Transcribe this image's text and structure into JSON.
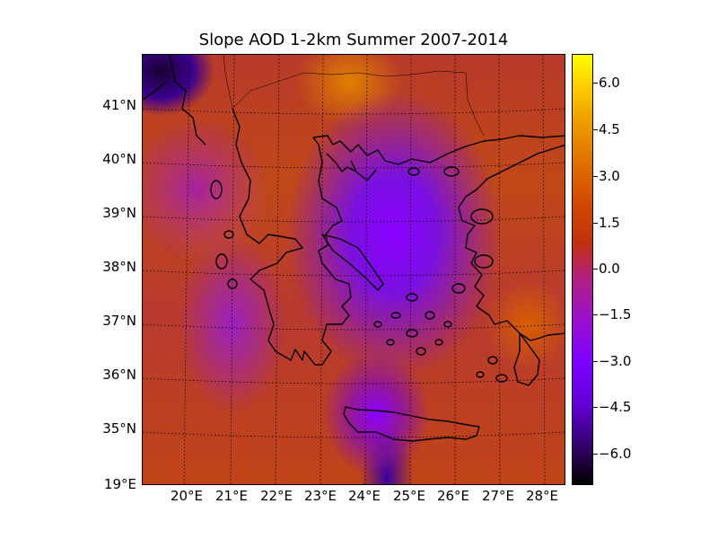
{
  "title": "Slope AOD 1-2km Summer 2007-2014",
  "lat_labels": [
    "41°N",
    "40°N",
    "39°N",
    "38°N",
    "37°N",
    "36°N",
    "35°N"
  ],
  "corner_label": "19°E",
  "lon_labels": [
    "20°E",
    "21°E",
    "22°E",
    "23°E",
    "24°E",
    "25°E",
    "26°E",
    "27°E",
    "28°E"
  ],
  "colorbar": {
    "ticks": [
      "6.0",
      "4.5",
      "3.0",
      "1.5",
      "0.0",
      "−1.5",
      "−3.0",
      "−4.5",
      "−6.0"
    ],
    "range": [
      -7,
      7
    ],
    "colormap": [
      "#000000",
      "#6000d0",
      "#7a00ff",
      "#b02080",
      "#c03010",
      "#e07000",
      "#ffff00"
    ]
  },
  "chart_data": {
    "type": "heatmap",
    "title": "Slope AOD 1-2km Summer 2007-2014",
    "xlabel": "",
    "ylabel": "",
    "x_ticks": [
      "20°E",
      "21°E",
      "22°E",
      "23°E",
      "24°E",
      "25°E",
      "26°E",
      "27°E",
      "28°E"
    ],
    "y_ticks": [
      "35°N",
      "36°N",
      "37°N",
      "38°N",
      "39°N",
      "40°N",
      "41°N"
    ],
    "colorbar_ticks": [
      6.0,
      4.5,
      3.0,
      1.5,
      0.0,
      -1.5,
      -3.0,
      -4.5,
      -6.0
    ],
    "value_range": [
      -7,
      7
    ],
    "grid": true
  }
}
